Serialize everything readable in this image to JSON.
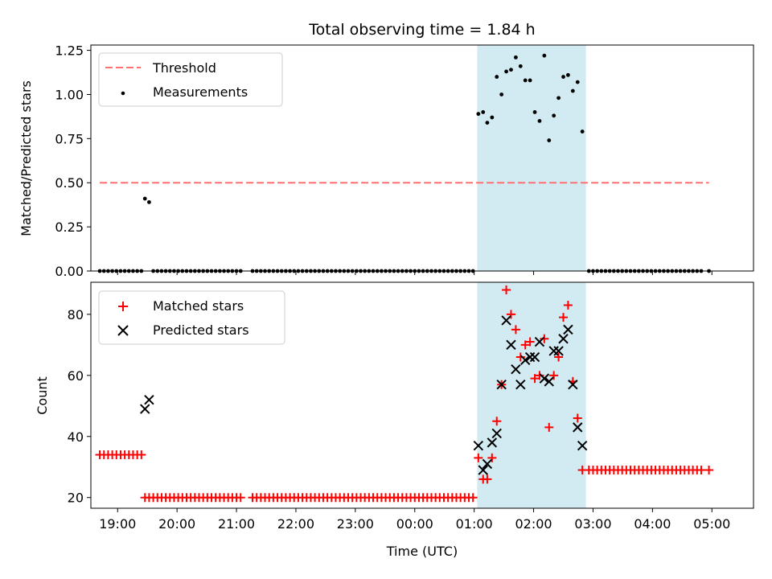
{
  "chart_data": {
    "type": "scatter",
    "title": "Total observing time = 1.84 h",
    "xlabel": "Time (UTC)",
    "x_unit": "hours since 18:00 UTC (continuing past midnight)",
    "x_range": [
      0.55,
      11.7
    ],
    "x_ticks": [
      {
        "x": 1,
        "label": "19:00"
      },
      {
        "x": 2,
        "label": "20:00"
      },
      {
        "x": 3,
        "label": "21:00"
      },
      {
        "x": 4,
        "label": "22:00"
      },
      {
        "x": 5,
        "label": "23:00"
      },
      {
        "x": 6,
        "label": "00:00"
      },
      {
        "x": 7,
        "label": "01:00"
      },
      {
        "x": 8,
        "label": "02:00"
      },
      {
        "x": 9,
        "label": "03:00"
      },
      {
        "x": 10,
        "label": "04:00"
      },
      {
        "x": 11,
        "label": "05:00"
      }
    ],
    "shaded_interval": {
      "x0": 7.05,
      "x1": 8.88,
      "color": "#add8e6"
    },
    "top_panel": {
      "ylabel": "Matched/Predicted stars",
      "ylim": [
        0,
        1.28
      ],
      "yticks": [
        0.0,
        0.25,
        0.5,
        0.75,
        1.0,
        1.25
      ],
      "ytick_labels": [
        "0.00",
        "0.25",
        "0.50",
        "0.75",
        "1.00",
        "1.25"
      ],
      "threshold": {
        "name": "Threshold",
        "value": 0.5,
        "x_start": 0.7,
        "x_end": 10.95,
        "color": "#ff7070"
      },
      "measurements": {
        "name": "Measurements",
        "color": "#000000",
        "points": [
          [
            0.7,
            0
          ],
          [
            0.77,
            0
          ],
          [
            0.84,
            0
          ],
          [
            0.91,
            0
          ],
          [
            0.98,
            0
          ],
          [
            1.05,
            0
          ],
          [
            1.12,
            0
          ],
          [
            1.19,
            0
          ],
          [
            1.26,
            0
          ],
          [
            1.33,
            0
          ],
          [
            1.4,
            0
          ],
          [
            1.46,
            0.41
          ],
          [
            1.53,
            0.39
          ],
          [
            1.6,
            0
          ],
          [
            1.67,
            0
          ],
          [
            1.74,
            0
          ],
          [
            1.81,
            0
          ],
          [
            1.88,
            0
          ],
          [
            1.95,
            0
          ],
          [
            2.02,
            0
          ],
          [
            2.09,
            0
          ],
          [
            2.16,
            0
          ],
          [
            2.23,
            0
          ],
          [
            2.3,
            0
          ],
          [
            2.37,
            0
          ],
          [
            2.44,
            0
          ],
          [
            2.51,
            0
          ],
          [
            2.58,
            0
          ],
          [
            2.65,
            0
          ],
          [
            2.72,
            0
          ],
          [
            2.79,
            0
          ],
          [
            2.86,
            0
          ],
          [
            2.93,
            0
          ],
          [
            3.0,
            0
          ],
          [
            3.07,
            0
          ],
          [
            3.27,
            0
          ],
          [
            3.34,
            0
          ],
          [
            3.41,
            0
          ],
          [
            3.48,
            0
          ],
          [
            3.55,
            0
          ],
          [
            3.62,
            0
          ],
          [
            3.69,
            0
          ],
          [
            3.76,
            0
          ],
          [
            3.83,
            0
          ],
          [
            3.9,
            0
          ],
          [
            3.97,
            0
          ],
          [
            4.04,
            0
          ],
          [
            4.11,
            0
          ],
          [
            4.18,
            0
          ],
          [
            4.25,
            0
          ],
          [
            4.32,
            0
          ],
          [
            4.39,
            0
          ],
          [
            4.46,
            0
          ],
          [
            4.53,
            0
          ],
          [
            4.6,
            0
          ],
          [
            4.67,
            0
          ],
          [
            4.74,
            0
          ],
          [
            4.81,
            0
          ],
          [
            4.88,
            0
          ],
          [
            4.95,
            0
          ],
          [
            5.02,
            0
          ],
          [
            5.09,
            0
          ],
          [
            5.16,
            0
          ],
          [
            5.23,
            0
          ],
          [
            5.3,
            0
          ],
          [
            5.37,
            0
          ],
          [
            5.44,
            0
          ],
          [
            5.51,
            0
          ],
          [
            5.58,
            0
          ],
          [
            5.65,
            0
          ],
          [
            5.72,
            0
          ],
          [
            5.79,
            0
          ],
          [
            5.86,
            0
          ],
          [
            5.93,
            0
          ],
          [
            6.0,
            0
          ],
          [
            6.07,
            0
          ],
          [
            6.14,
            0
          ],
          [
            6.21,
            0
          ],
          [
            6.28,
            0
          ],
          [
            6.35,
            0
          ],
          [
            6.42,
            0
          ],
          [
            6.49,
            0
          ],
          [
            6.56,
            0
          ],
          [
            6.63,
            0
          ],
          [
            6.7,
            0
          ],
          [
            6.77,
            0
          ],
          [
            6.84,
            0
          ],
          [
            6.91,
            0
          ],
          [
            6.98,
            0
          ],
          [
            7.07,
            0.89
          ],
          [
            7.15,
            0.9
          ],
          [
            7.22,
            0.84
          ],
          [
            7.3,
            0.87
          ],
          [
            7.38,
            1.1
          ],
          [
            7.46,
            1.0
          ],
          [
            7.54,
            1.13
          ],
          [
            7.62,
            1.14
          ],
          [
            7.7,
            1.21
          ],
          [
            7.78,
            1.16
          ],
          [
            7.86,
            1.08
          ],
          [
            7.94,
            1.08
          ],
          [
            8.02,
            0.9
          ],
          [
            8.1,
            0.85
          ],
          [
            8.18,
            1.22
          ],
          [
            8.26,
            0.74
          ],
          [
            8.34,
            0.88
          ],
          [
            8.42,
            0.98
          ],
          [
            8.5,
            1.1
          ],
          [
            8.58,
            1.11
          ],
          [
            8.66,
            1.02
          ],
          [
            8.74,
            1.07
          ],
          [
            8.82,
            0.79
          ],
          [
            8.93,
            0
          ],
          [
            9.0,
            0
          ],
          [
            9.07,
            0
          ],
          [
            9.14,
            0
          ],
          [
            9.21,
            0
          ],
          [
            9.28,
            0
          ],
          [
            9.35,
            0
          ],
          [
            9.42,
            0
          ],
          [
            9.49,
            0
          ],
          [
            9.56,
            0
          ],
          [
            9.63,
            0
          ],
          [
            9.7,
            0
          ],
          [
            9.77,
            0
          ],
          [
            9.84,
            0
          ],
          [
            9.91,
            0
          ],
          [
            9.98,
            0
          ],
          [
            10.05,
            0
          ],
          [
            10.12,
            0
          ],
          [
            10.19,
            0
          ],
          [
            10.26,
            0
          ],
          [
            10.33,
            0
          ],
          [
            10.4,
            0
          ],
          [
            10.47,
            0
          ],
          [
            10.54,
            0
          ],
          [
            10.61,
            0
          ],
          [
            10.68,
            0
          ],
          [
            10.75,
            0
          ],
          [
            10.82,
            0
          ],
          [
            10.95,
            0
          ]
        ]
      }
    },
    "bottom_panel": {
      "ylabel": "Count",
      "ylim": [
        16.5,
        90.5
      ],
      "yticks": [
        20,
        40,
        60,
        80
      ],
      "ytick_labels": [
        "20",
        "40",
        "60",
        "80"
      ],
      "matched": {
        "name": "Matched stars",
        "color": "#ff0000",
        "points": [
          [
            0.7,
            34
          ],
          [
            0.77,
            34
          ],
          [
            0.84,
            34
          ],
          [
            0.91,
            34
          ],
          [
            0.98,
            34
          ],
          [
            1.05,
            34
          ],
          [
            1.12,
            34
          ],
          [
            1.19,
            34
          ],
          [
            1.26,
            34
          ],
          [
            1.33,
            34
          ],
          [
            1.4,
            34
          ],
          [
            1.46,
            20
          ],
          [
            1.53,
            20
          ],
          [
            1.6,
            20
          ],
          [
            1.67,
            20
          ],
          [
            1.74,
            20
          ],
          [
            1.81,
            20
          ],
          [
            1.88,
            20
          ],
          [
            1.95,
            20
          ],
          [
            2.02,
            20
          ],
          [
            2.09,
            20
          ],
          [
            2.16,
            20
          ],
          [
            2.23,
            20
          ],
          [
            2.3,
            20
          ],
          [
            2.37,
            20
          ],
          [
            2.44,
            20
          ],
          [
            2.51,
            20
          ],
          [
            2.58,
            20
          ],
          [
            2.65,
            20
          ],
          [
            2.72,
            20
          ],
          [
            2.79,
            20
          ],
          [
            2.86,
            20
          ],
          [
            2.93,
            20
          ],
          [
            3.0,
            20
          ],
          [
            3.07,
            20
          ],
          [
            3.27,
            20
          ],
          [
            3.34,
            20
          ],
          [
            3.41,
            20
          ],
          [
            3.48,
            20
          ],
          [
            3.55,
            20
          ],
          [
            3.62,
            20
          ],
          [
            3.69,
            20
          ],
          [
            3.76,
            20
          ],
          [
            3.83,
            20
          ],
          [
            3.9,
            20
          ],
          [
            3.97,
            20
          ],
          [
            4.04,
            20
          ],
          [
            4.11,
            20
          ],
          [
            4.18,
            20
          ],
          [
            4.25,
            20
          ],
          [
            4.32,
            20
          ],
          [
            4.39,
            20
          ],
          [
            4.46,
            20
          ],
          [
            4.53,
            20
          ],
          [
            4.6,
            20
          ],
          [
            4.67,
            20
          ],
          [
            4.74,
            20
          ],
          [
            4.81,
            20
          ],
          [
            4.88,
            20
          ],
          [
            4.95,
            20
          ],
          [
            5.02,
            20
          ],
          [
            5.09,
            20
          ],
          [
            5.16,
            20
          ],
          [
            5.23,
            20
          ],
          [
            5.3,
            20
          ],
          [
            5.37,
            20
          ],
          [
            5.44,
            20
          ],
          [
            5.51,
            20
          ],
          [
            5.58,
            20
          ],
          [
            5.65,
            20
          ],
          [
            5.72,
            20
          ],
          [
            5.79,
            20
          ],
          [
            5.86,
            20
          ],
          [
            5.93,
            20
          ],
          [
            6.0,
            20
          ],
          [
            6.07,
            20
          ],
          [
            6.14,
            20
          ],
          [
            6.21,
            20
          ],
          [
            6.28,
            20
          ],
          [
            6.35,
            20
          ],
          [
            6.42,
            20
          ],
          [
            6.49,
            20
          ],
          [
            6.56,
            20
          ],
          [
            6.63,
            20
          ],
          [
            6.7,
            20
          ],
          [
            6.77,
            20
          ],
          [
            6.84,
            20
          ],
          [
            6.91,
            20
          ],
          [
            6.98,
            20
          ],
          [
            7.07,
            33
          ],
          [
            7.15,
            26
          ],
          [
            7.22,
            26
          ],
          [
            7.3,
            33
          ],
          [
            7.38,
            45
          ],
          [
            7.46,
            57
          ],
          [
            7.54,
            88
          ],
          [
            7.62,
            80
          ],
          [
            7.7,
            75
          ],
          [
            7.78,
            66
          ],
          [
            7.86,
            70
          ],
          [
            7.94,
            71
          ],
          [
            8.02,
            59
          ],
          [
            8.1,
            60
          ],
          [
            8.18,
            72
          ],
          [
            8.26,
            43
          ],
          [
            8.34,
            60
          ],
          [
            8.42,
            66
          ],
          [
            8.5,
            79
          ],
          [
            8.58,
            83
          ],
          [
            8.66,
            58
          ],
          [
            8.74,
            46
          ],
          [
            8.82,
            29
          ],
          [
            8.93,
            29
          ],
          [
            9.0,
            29
          ],
          [
            9.07,
            29
          ],
          [
            9.14,
            29
          ],
          [
            9.21,
            29
          ],
          [
            9.28,
            29
          ],
          [
            9.35,
            29
          ],
          [
            9.42,
            29
          ],
          [
            9.49,
            29
          ],
          [
            9.56,
            29
          ],
          [
            9.63,
            29
          ],
          [
            9.7,
            29
          ],
          [
            9.77,
            29
          ],
          [
            9.84,
            29
          ],
          [
            9.91,
            29
          ],
          [
            9.98,
            29
          ],
          [
            10.05,
            29
          ],
          [
            10.12,
            29
          ],
          [
            10.19,
            29
          ],
          [
            10.26,
            29
          ],
          [
            10.33,
            29
          ],
          [
            10.4,
            29
          ],
          [
            10.47,
            29
          ],
          [
            10.54,
            29
          ],
          [
            10.61,
            29
          ],
          [
            10.68,
            29
          ],
          [
            10.75,
            29
          ],
          [
            10.82,
            29
          ],
          [
            10.95,
            29
          ]
        ]
      },
      "predicted": {
        "name": "Predicted stars",
        "color": "#000000",
        "points": [
          [
            1.46,
            49
          ],
          [
            1.53,
            52
          ],
          [
            7.07,
            37
          ],
          [
            7.15,
            29
          ],
          [
            7.22,
            31
          ],
          [
            7.3,
            38
          ],
          [
            7.38,
            41
          ],
          [
            7.46,
            57
          ],
          [
            7.54,
            78
          ],
          [
            7.62,
            70
          ],
          [
            7.7,
            62
          ],
          [
            7.78,
            57
          ],
          [
            7.86,
            65
          ],
          [
            7.94,
            66
          ],
          [
            8.02,
            66
          ],
          [
            8.1,
            71
          ],
          [
            8.18,
            59
          ],
          [
            8.26,
            58
          ],
          [
            8.34,
            68
          ],
          [
            8.42,
            68
          ],
          [
            8.5,
            72
          ],
          [
            8.58,
            75
          ],
          [
            8.66,
            57
          ],
          [
            8.74,
            43
          ],
          [
            8.82,
            37
          ]
        ]
      }
    }
  }
}
